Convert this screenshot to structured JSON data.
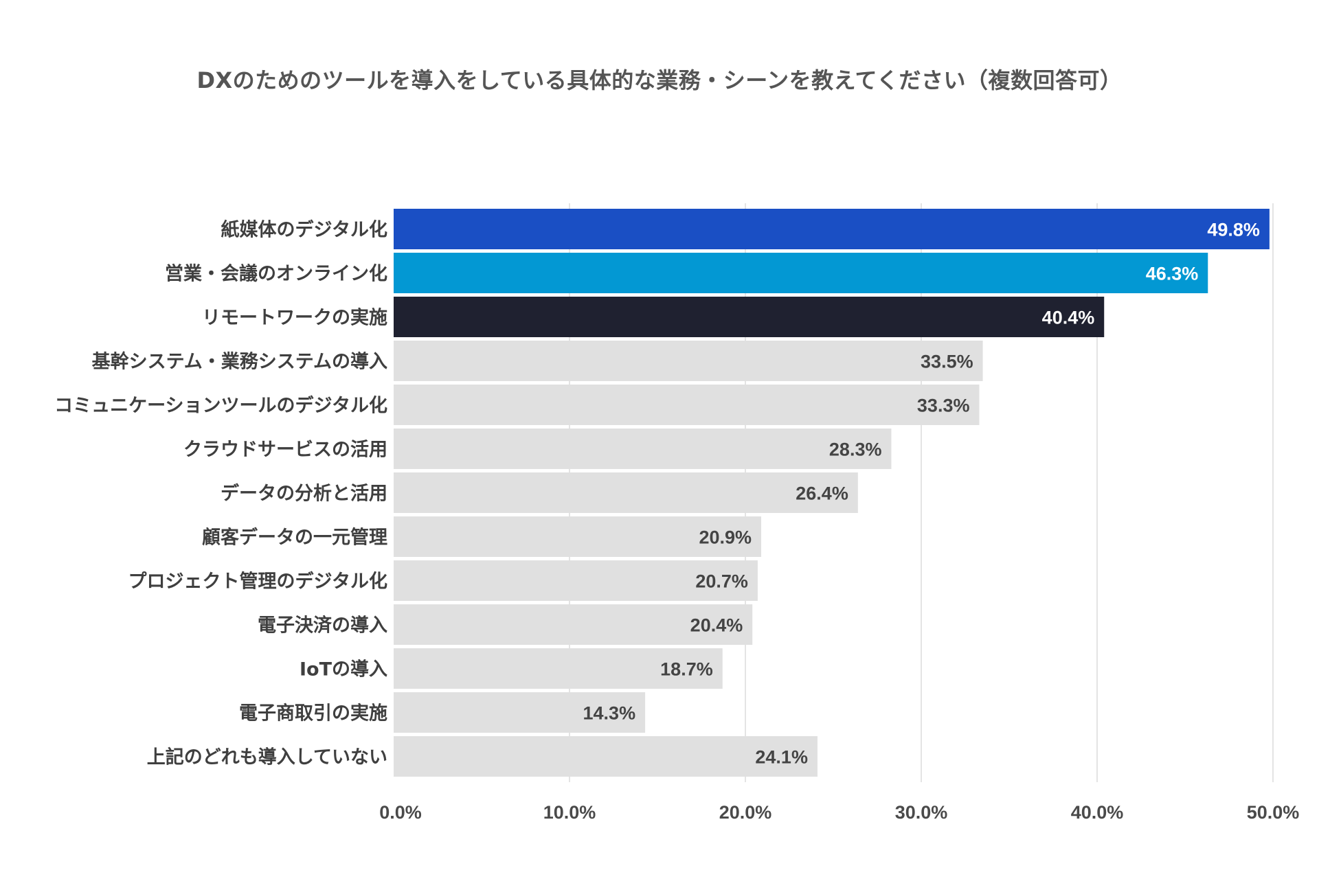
{
  "chart_data": {
    "type": "bar",
    "orientation": "horizontal",
    "title": "DXのためのツールを導入をしている具体的な業務・シーンを教えてください（複数回答可）",
    "categories": [
      "紙媒体のデジタル化",
      "営業・会議のオンライン化",
      "リモートワークの実施",
      "基幹システム・業務システムの導入",
      "コミュニケーションツールのデジタル化",
      "クラウドサービスの活用",
      "データの分析と活用",
      "顧客データの一元管理",
      "プロジェクト管理のデジタル化",
      "電子決済の導入",
      "IoTの導入",
      "電子商取引の実施",
      "上記のどれも導入していない"
    ],
    "values": [
      49.8,
      46.3,
      40.4,
      33.5,
      33.3,
      28.3,
      26.4,
      20.9,
      20.7,
      20.4,
      18.7,
      14.3,
      24.1
    ],
    "value_labels": [
      "49.8%",
      "46.3%",
      "40.4%",
      "33.5%",
      "33.3%",
      "28.3%",
      "26.4%",
      "20.9%",
      "20.7%",
      "20.4%",
      "18.7%",
      "14.3%",
      "24.1%"
    ],
    "bar_colors": [
      "#1a4fc4",
      "#0398d3",
      "#1f2130",
      "#e0e0e0",
      "#e0e0e0",
      "#e0e0e0",
      "#e0e0e0",
      "#e0e0e0",
      "#e0e0e0",
      "#e0e0e0",
      "#e0e0e0",
      "#e0e0e0",
      "#e0e0e0"
    ],
    "value_label_colors": [
      "#ffffff",
      "#ffffff",
      "#ffffff",
      "#444444",
      "#444444",
      "#444444",
      "#444444",
      "#444444",
      "#444444",
      "#444444",
      "#444444",
      "#444444",
      "#444444"
    ],
    "xlim": [
      0,
      50
    ],
    "x_ticks": [
      0,
      10,
      20,
      30,
      40,
      50
    ],
    "x_tick_labels": [
      "0.0%",
      "10.0%",
      "20.0%",
      "30.0%",
      "40.0%",
      "50.0%"
    ],
    "grid": true,
    "gridline_color": "#dcdcdc",
    "xlabel": "",
    "ylabel": ""
  }
}
